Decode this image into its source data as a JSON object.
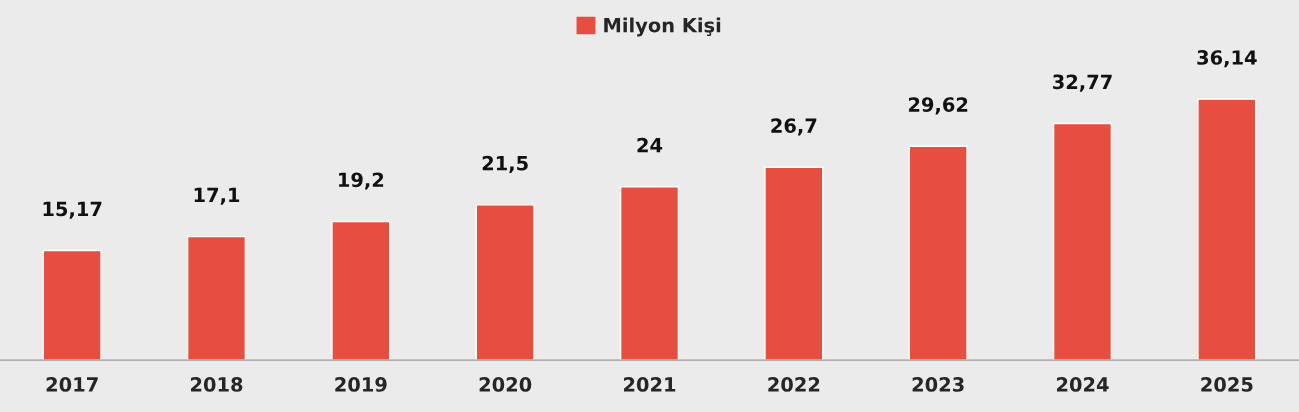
{
  "chart_data": {
    "type": "bar",
    "categories": [
      "2017",
      "2018",
      "2019",
      "2020",
      "2021",
      "2022",
      "2023",
      "2024",
      "2025"
    ],
    "series": [
      {
        "name": "Milyon Kişi",
        "color": "#e84e3f",
        "values": [
          15.17,
          17.1,
          19.2,
          21.5,
          24,
          26.7,
          29.62,
          32.77,
          36.14
        ],
        "value_labels": [
          "15,17",
          "17,1",
          "19,2",
          "21,5",
          "24",
          "26,7",
          "29,62",
          "32,77",
          "36,14"
        ]
      }
    ],
    "legend": "top",
    "grid": false
  }
}
